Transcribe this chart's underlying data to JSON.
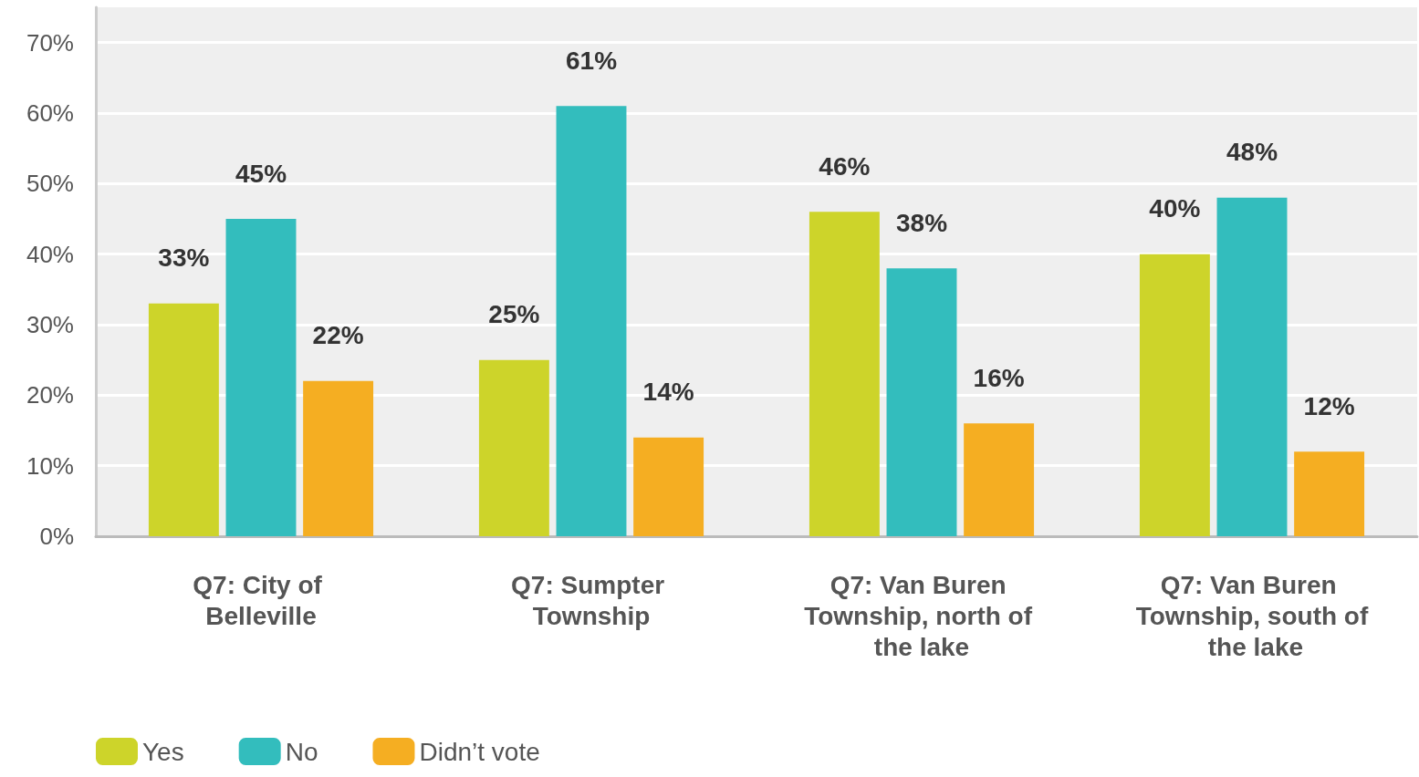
{
  "chart_data": {
    "type": "bar",
    "categories": [
      "Q7: City of Belleville",
      "Q7: Sumpter Township",
      "Q7: Van Buren Township, north of the lake",
      "Q7: Van Buren Township, south of the lake"
    ],
    "series": [
      {
        "name": "Yes",
        "color": "#cdd42a",
        "values": [
          33,
          25,
          46,
          40
        ],
        "value_labels": [
          "33%",
          "25%",
          "46%",
          "40%"
        ]
      },
      {
        "name": "No",
        "color": "#33bdbd",
        "values": [
          45,
          61,
          38,
          48
        ],
        "value_labels": [
          "45%",
          "61%",
          "38%",
          "48%"
        ]
      },
      {
        "name": "Didn’t vote",
        "color": "#f5ae22",
        "values": [
          22,
          14,
          16,
          12
        ],
        "value_labels": [
          "22%",
          "14%",
          "16%",
          "12%"
        ]
      }
    ],
    "ylim": [
      0,
      75
    ],
    "yticks": [
      {
        "value": 0,
        "label": "0%"
      },
      {
        "value": 10,
        "label": "10%"
      },
      {
        "value": 20,
        "label": "20%"
      },
      {
        "value": 30,
        "label": "30%"
      },
      {
        "value": 40,
        "label": "40%"
      },
      {
        "value": 50,
        "label": "50%"
      },
      {
        "value": 60,
        "label": "60%"
      },
      {
        "value": 70,
        "label": "70%"
      }
    ],
    "grid": "y",
    "legend": "bottom left"
  }
}
